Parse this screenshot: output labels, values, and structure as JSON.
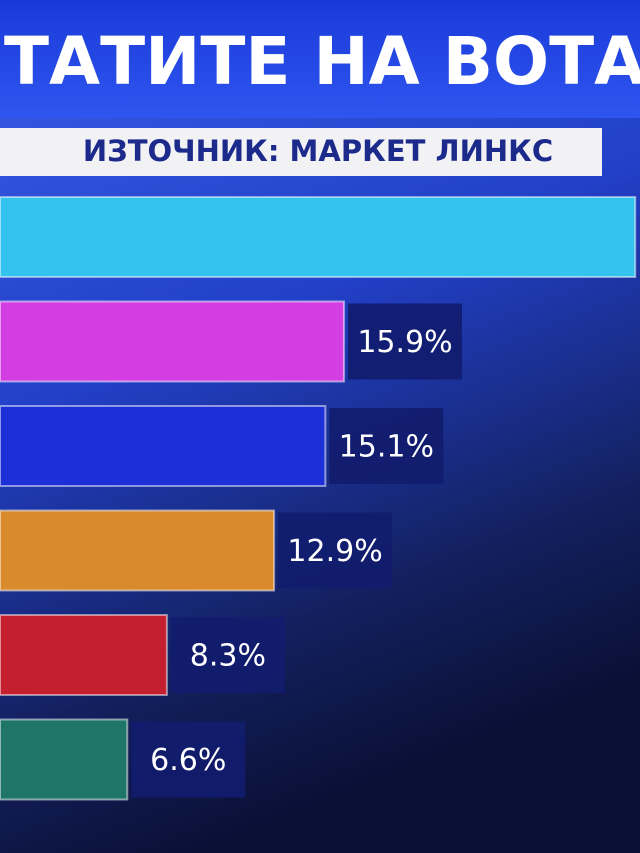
{
  "chart_data": {
    "type": "bar",
    "title": "ТАТИТЕ НА ВОТА",
    "subtitle": "ИЗТОЧНИК: МАРКЕТ ЛИНКС",
    "categories": [
      null,
      null,
      null,
      null,
      null,
      null
    ],
    "values": [
      28.4,
      15.9,
      15.1,
      12.9,
      8.3,
      6.6
    ],
    "value_labels": [
      null,
      "15.9%",
      "15.1%",
      "12.9%",
      "8.3%",
      "6.6%"
    ],
    "colors": [
      "#33c3ee",
      "#d23ee2",
      "#1d2fd6",
      "#d98a2c",
      "#c41f2e",
      "#1f7568"
    ]
  }
}
